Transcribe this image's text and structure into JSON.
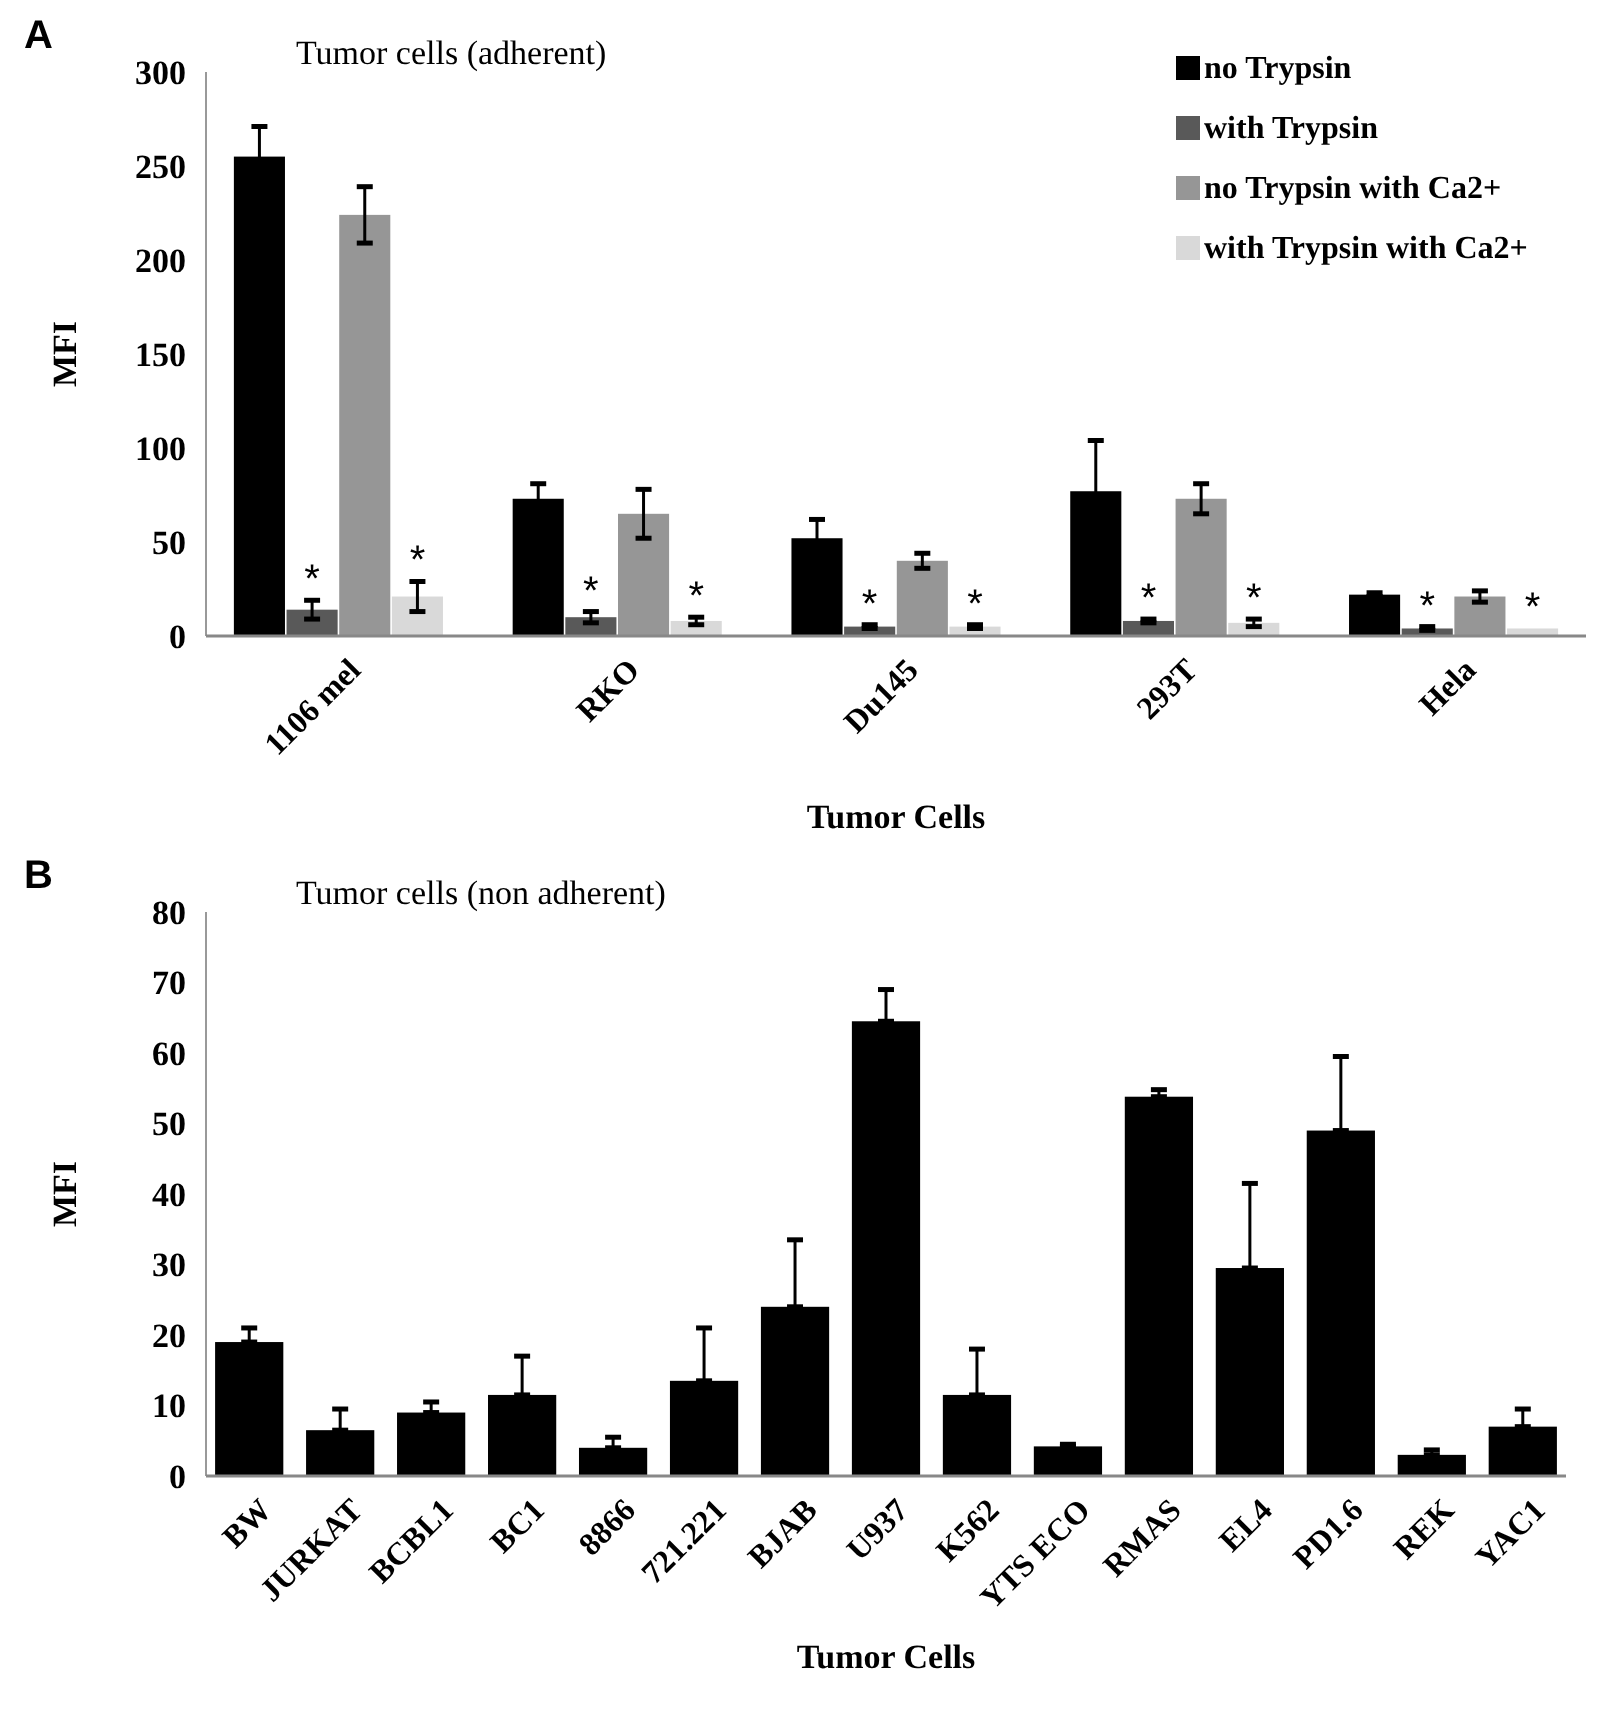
{
  "chart_data": [
    {
      "type": "bar",
      "title": "Tumor cells (adherent)",
      "xlabel": "Tumor Cells",
      "ylabel": "MFI",
      "annotations": [
        "A"
      ],
      "categories": [
        "1106 mel",
        "RKO",
        "Du145",
        "293T",
        "Hela"
      ],
      "ylim": [
        0,
        300
      ],
      "yticks": [
        0,
        50,
        100,
        150,
        200,
        250,
        300
      ],
      "grid": false,
      "legend": "top right",
      "series": [
        {
          "name": "no Trypsin",
          "color": "#000000",
          "values": [
            255,
            73,
            52,
            77,
            22
          ],
          "errors": [
            16,
            8,
            10,
            27,
            1
          ]
        },
        {
          "name": "with Trypsin",
          "color": "#595959",
          "values": [
            14,
            10,
            5,
            8,
            4
          ],
          "errors": [
            5,
            3,
            1,
            1,
            1
          ],
          "value_labels": [
            "*",
            "*",
            "*",
            "*",
            "*"
          ]
        },
        {
          "name": "no Trypsin with Ca2+",
          "color": "#969696",
          "values": [
            224,
            65,
            40,
            73,
            21
          ],
          "errors": [
            15,
            13,
            4,
            8,
            3
          ]
        },
        {
          "name": "with Trypsin with Ca2+",
          "color": "#d9d9d9",
          "values": [
            21,
            8,
            5,
            7,
            4
          ],
          "errors": [
            8,
            2,
            1,
            2,
            null
          ],
          "value_labels": [
            "*",
            "*",
            "*",
            "*",
            "*"
          ]
        }
      ]
    },
    {
      "type": "bar",
      "title": "Tumor cells (non adherent)",
      "xlabel": "Tumor Cells",
      "ylabel": "MFI",
      "annotations": [
        "B"
      ],
      "categories": [
        "BW",
        "JURKAT",
        "BCBL1",
        "BC1",
        "8866",
        "721.221",
        "BJAB",
        "U937",
        "K562",
        "YTS ECO",
        "RMAS",
        "EL4",
        "PD1.6",
        "REK",
        "YAC1"
      ],
      "ylim": [
        0,
        80
      ],
      "yticks": [
        0,
        10,
        20,
        30,
        40,
        50,
        60,
        70,
        80
      ],
      "grid": false,
      "legend": false,
      "series": [
        {
          "color": "#000000",
          "values": [
            19,
            6.5,
            9,
            11.5,
            4,
            13.5,
            24,
            64.5,
            11.5,
            4.2,
            53.8,
            29.5,
            49,
            3,
            7
          ],
          "errors": [
            [
              19,
              21
            ],
            [
              6.5,
              9.5
            ],
            [
              9,
              10.5
            ],
            [
              11.5,
              17
            ],
            [
              4,
              5.5
            ],
            [
              13.5,
              21
            ],
            [
              24,
              33.5
            ],
            [
              64.5,
              69
            ],
            [
              11.5,
              18
            ],
            [
              4.2,
              4.5
            ],
            [
              53.8,
              54.8
            ],
            [
              29.5,
              41.5
            ],
            [
              49,
              59.5
            ],
            [
              3,
              3.7
            ],
            [
              7,
              9.5
            ]
          ]
        }
      ]
    }
  ]
}
